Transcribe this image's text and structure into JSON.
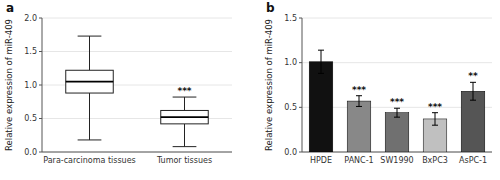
{
  "chart_data": [
    {
      "type": "box",
      "title": "a",
      "ylabel": "Relative expression of miR-409",
      "categories": [
        "Para-carcinoma tissues",
        "Tumor tissues"
      ],
      "boxes": [
        {
          "med": 1.05,
          "q1": 0.88,
          "q3": 1.22,
          "whislo": 0.18,
          "whishi": 1.73
        },
        {
          "med": 0.52,
          "q1": 0.42,
          "q3": 0.62,
          "whislo": 0.08,
          "whishi": 0.82
        }
      ],
      "annotations": [
        {
          "category": "Tumor tissues",
          "text": "***"
        }
      ],
      "ylim": [
        0,
        2.0
      ],
      "yticks": [
        {
          "value": 0,
          "label": "0.0"
        },
        0.5,
        {
          "value": 1,
          "label": "1.0"
        },
        1.5,
        {
          "value": 2,
          "label": "2.0"
        }
      ]
    },
    {
      "type": "bar",
      "title": "b",
      "ylabel": "Relative expression of miR-409",
      "categories": [
        "HPDE",
        "PANC-1",
        "SW1990",
        "BxPC3",
        "AsPC-1"
      ],
      "values": [
        1.01,
        0.57,
        0.44,
        0.37,
        0.68
      ],
      "errors": [
        0.13,
        0.06,
        0.05,
        0.07,
        0.1
      ],
      "colors": [
        "#111111",
        "#888888",
        "#707070",
        "#c0c0c0",
        "#555555"
      ],
      "annotations": [
        {
          "category": "PANC-1",
          "text": "***"
        },
        {
          "category": "SW1990",
          "text": "***"
        },
        {
          "category": "BxPC3",
          "text": "***"
        },
        {
          "category": "AsPC-1",
          "text": "**"
        }
      ],
      "ylim": [
        0,
        1.5
      ],
      "yticks": [
        {
          "value": 0,
          "label": "0.0"
        },
        0.5,
        {
          "value": 1,
          "label": "1.0"
        },
        1.5
      ]
    }
  ]
}
